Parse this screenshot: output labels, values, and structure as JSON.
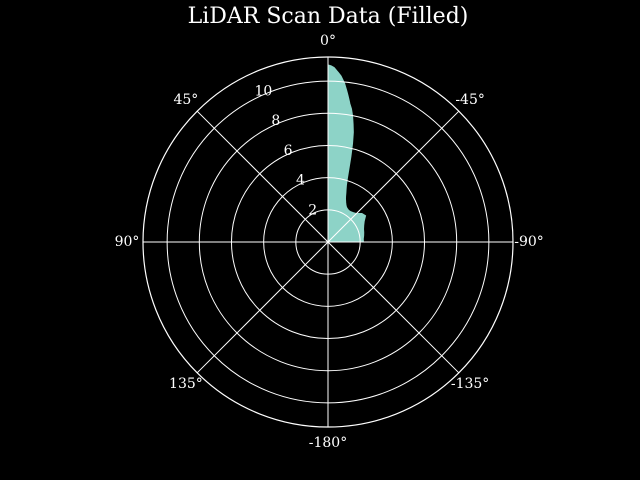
{
  "chart_data": {
    "type": "area",
    "title": "LiDAR Scan Data (Filled)",
    "projection": "polar",
    "theta_zero": "top",
    "theta_direction": "counterclockwise",
    "angle_unit": "degrees",
    "angle_ticks": [
      0,
      45,
      90,
      135,
      180,
      -135,
      -90,
      -45
    ],
    "angle_tick_labels": [
      "0°",
      "45°",
      "90°",
      "135°",
      "-180°",
      "-135°",
      "-90°",
      "-45°"
    ],
    "radial_ticks": [
      2,
      4,
      6,
      8,
      10
    ],
    "radial_tick_labels": [
      "2",
      "4",
      "6",
      "8",
      "10"
    ],
    "rlim": [
      0,
      11.5
    ],
    "grid": true,
    "series": [
      {
        "angles": [
          0,
          -0.5,
          -1,
          -1.5,
          -2,
          -2.5,
          -3,
          -3.5,
          -4,
          -4.5,
          -5,
          -5.5,
          -6,
          -6.5,
          -7,
          -7.5,
          -8,
          -8.5,
          -9,
          -10,
          -11,
          -12,
          -13,
          -14,
          -15,
          -16,
          -17,
          -18,
          -19,
          -20,
          -21,
          -22,
          -24,
          -26,
          -28,
          -30,
          -33,
          -36,
          -40,
          -45,
          -50,
          -55,
          -60,
          -65,
          -70,
          -75,
          -80,
          -85,
          -90
        ],
        "ranges": [
          11.0,
          10.98,
          10.95,
          10.9,
          10.85,
          10.75,
          10.65,
          10.55,
          10.45,
          10.35,
          10.2,
          10.05,
          9.9,
          9.7,
          9.5,
          9.3,
          9.1,
          8.9,
          8.7,
          8.4,
          8.0,
          7.5,
          7.0,
          6.3,
          5.5,
          4.7,
          4.1,
          3.7,
          3.45,
          3.25,
          3.05,
          2.9,
          2.7,
          2.55,
          2.45,
          2.4,
          2.35,
          2.35,
          2.4,
          2.5,
          2.75,
          2.85,
          2.6,
          2.45,
          2.35,
          2.3,
          2.25,
          2.2,
          2.2
        ]
      }
    ],
    "colors": {
      "background": "#000000",
      "fill": "#8dd3c7",
      "grid": "#ffffff",
      "text": "#ffffff"
    }
  }
}
